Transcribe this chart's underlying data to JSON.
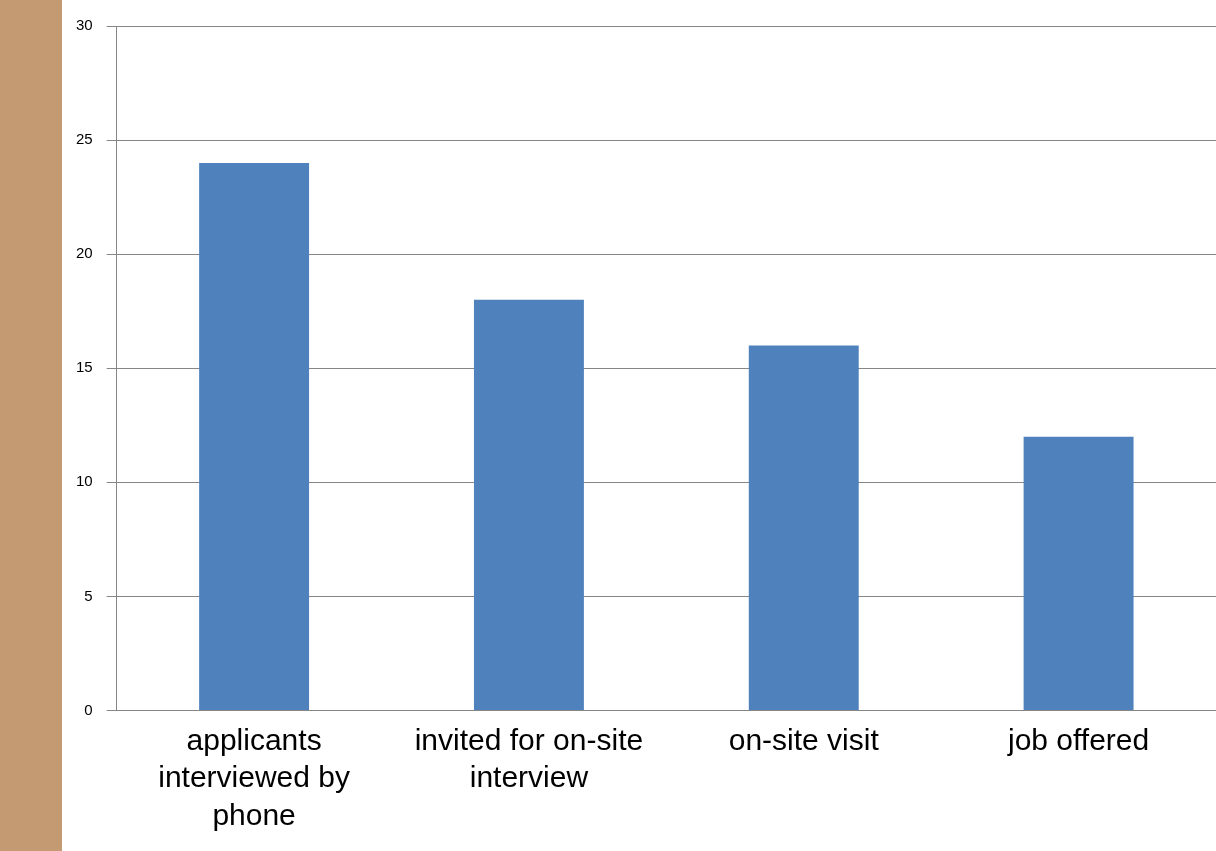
{
  "chart_data": {
    "type": "bar",
    "categories": [
      "applicants interviewed by phone",
      "invited for on-site interview",
      "on-site visit",
      "job offered"
    ],
    "values": [
      24,
      18,
      16,
      12
    ],
    "color": "#4f81bd",
    "ylim": [
      0,
      30
    ],
    "yticks": [
      0,
      5,
      10,
      15,
      20,
      25,
      30
    ],
    "grid": "y",
    "legend": false
  }
}
